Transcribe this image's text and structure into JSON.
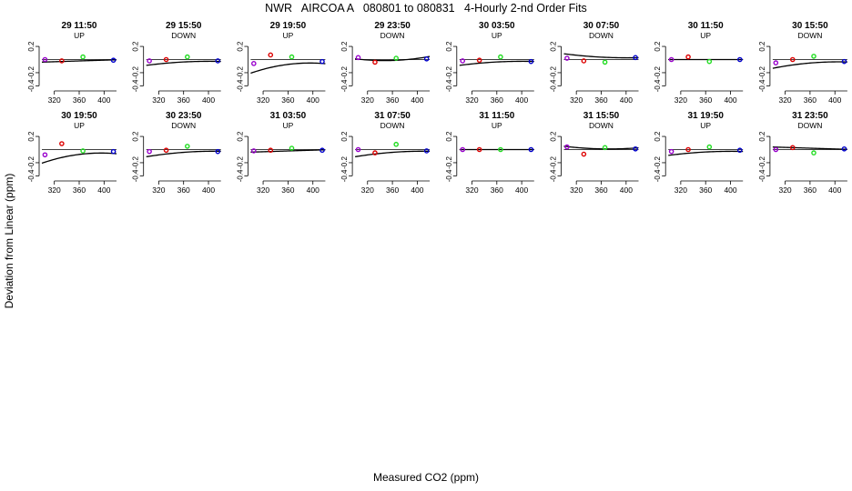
{
  "title": "NWR   AIRCOA A   080801 to 080831   4-Hourly 2-nd Order Fits",
  "xlabel": "Measured CO2 (ppm)",
  "ylabel": "Deviation from Linear (ppm)",
  "colors": {
    "std1": "#9900cc",
    "std2": "#dd0000",
    "std3": "#22dd22",
    "std4": "#0000cc",
    "fit": "#000000",
    "axis": "#000000"
  },
  "chart_data": {
    "type": "scatter",
    "xlim": [
      300,
      420
    ],
    "ylim": [
      -0.45,
      0.45
    ],
    "xticks": [
      320,
      360,
      400
    ],
    "yticks": [
      0.2,
      -0.2,
      -0.4
    ],
    "ytick_labels": [
      "0.2",
      "-0.2",
      "-0.4"
    ],
    "x": [
      305,
      332,
      366,
      415
    ],
    "panels": [
      {
        "label": "29 11:50",
        "dir": "UP",
        "y": [
          0.0,
          -0.02,
          0.04,
          -0.01
        ],
        "fit": [
          -0.0211,
          0.0003,
          0.0
        ]
      },
      {
        "label": "29 15:50",
        "dir": "DOWN",
        "y": [
          -0.02,
          0.0,
          0.04,
          -0.02
        ],
        "fit": [
          -0.0369,
          0.0005,
          -0.0006
        ]
      },
      {
        "label": "29 19:50",
        "dir": "UP",
        "y": [
          -0.06,
          0.07,
          0.04,
          -0.03
        ],
        "fit": [
          -0.0738,
          0.0012,
          -0.0017
        ]
      },
      {
        "label": "29 23:50",
        "dir": "DOWN",
        "y": [
          0.03,
          -0.04,
          0.02,
          0.01
        ],
        "fit": [
          -0.0138,
          0.0003,
          0.0012
        ]
      },
      {
        "label": "30 03:50",
        "dir": "UP",
        "y": [
          -0.02,
          -0.01,
          0.04,
          -0.03
        ],
        "fit": [
          -0.0369,
          0.0005,
          -0.0006
        ]
      },
      {
        "label": "30 07:50",
        "dir": "DOWN",
        "y": [
          0.02,
          -0.02,
          -0.04,
          0.03
        ],
        "fit": [
          0.0369,
          -0.0005,
          0.0006
        ]
      },
      {
        "label": "30 11:50",
        "dir": "UP",
        "y": [
          0.0,
          0.04,
          -0.03,
          0.0
        ],
        "fit": [
          0.0,
          0.0,
          0.0
        ]
      },
      {
        "label": "30 15:50",
        "dir": "DOWN",
        "y": [
          -0.05,
          0.0,
          0.05,
          -0.03
        ],
        "fit": [
          -0.0527,
          0.0008,
          -0.0009
        ]
      },
      {
        "label": "30 19:50",
        "dir": "UP",
        "y": [
          -0.08,
          0.09,
          -0.02,
          -0.03
        ],
        "fit": [
          -0.0738,
          0.0012,
          -0.0017
        ]
      },
      {
        "label": "30 23:50",
        "dir": "DOWN",
        "y": [
          -0.03,
          -0.01,
          0.05,
          -0.03
        ],
        "fit": [
          -0.0422,
          0.0007,
          -0.0007
        ]
      },
      {
        "label": "31 03:50",
        "dir": "UP",
        "y": [
          -0.02,
          -0.01,
          0.02,
          -0.01
        ],
        "fit": [
          -0.0211,
          0.0003,
          0.0
        ]
      },
      {
        "label": "31 07:50",
        "dir": "DOWN",
        "y": [
          0.0,
          -0.05,
          0.08,
          -0.02
        ],
        "fit": [
          -0.0422,
          0.0007,
          -0.0007
        ]
      },
      {
        "label": "31 11:50",
        "dir": "UP",
        "y": [
          0.0,
          0.0,
          0.0,
          0.0
        ],
        "fit": [
          0.0,
          0.0,
          0.0
        ]
      },
      {
        "label": "31 15:50",
        "dir": "DOWN",
        "y": [
          0.04,
          -0.07,
          0.03,
          0.01
        ],
        "fit": [
          0.0105,
          -0.0002,
          0.0008
        ]
      },
      {
        "label": "31 19:50",
        "dir": "UP",
        "y": [
          -0.03,
          0.0,
          0.04,
          -0.01
        ],
        "fit": [
          -0.0369,
          0.0005,
          -0.0006
        ]
      },
      {
        "label": "31 23:50",
        "dir": "DOWN",
        "y": [
          0.0,
          0.03,
          -0.05,
          0.01
        ],
        "fit": [
          0.0211,
          -0.0003,
          0.0
        ]
      }
    ]
  }
}
